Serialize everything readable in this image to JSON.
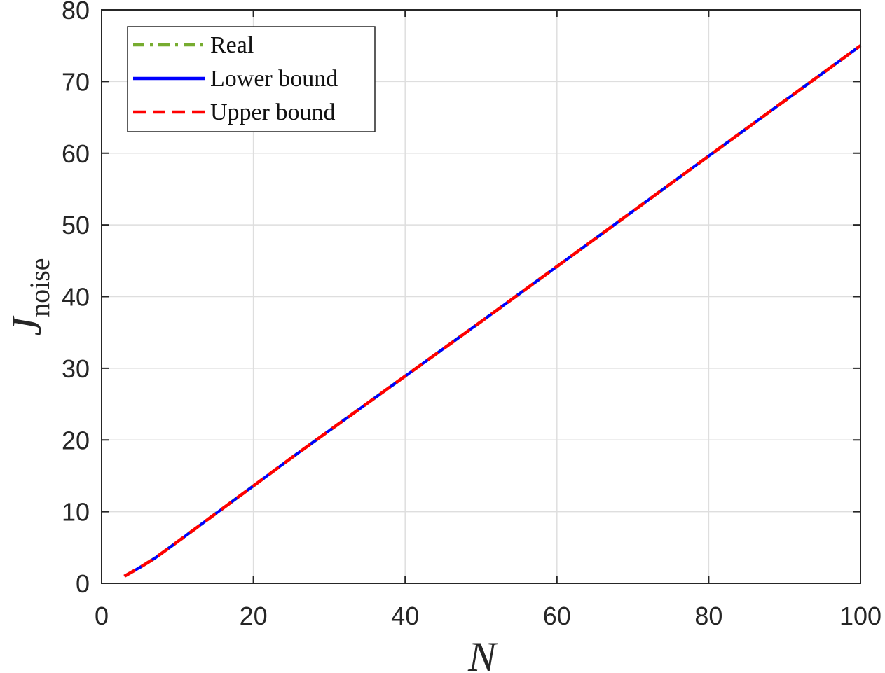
{
  "colors": {
    "real": "#77ac30",
    "lower": "#0000ff",
    "upper": "#ff0000",
    "grid": "#dedede",
    "axis": "#262626"
  },
  "chart_data": {
    "type": "line",
    "xlabel": "N",
    "ylabel": {
      "main": "J",
      "subscript": "noise"
    },
    "xlim": [
      0,
      100
    ],
    "ylim": [
      0,
      80
    ],
    "xticks": [
      0,
      20,
      40,
      60,
      80,
      100
    ],
    "yticks": [
      0,
      10,
      20,
      30,
      40,
      50,
      60,
      70,
      80
    ],
    "grid": true,
    "legend_position": "top-left",
    "x": [
      3,
      5,
      7,
      10,
      15,
      20,
      25,
      30,
      40,
      50,
      60,
      70,
      80,
      90,
      100
    ],
    "series": [
      {
        "name": "Real",
        "style": "dash-dot",
        "color": "#77ac30",
        "values": [
          1.0,
          2.2,
          3.5,
          5.8,
          9.7,
          13.6,
          17.5,
          21.3,
          28.9,
          36.5,
          44.2,
          51.9,
          59.6,
          67.3,
          75.0
        ]
      },
      {
        "name": "Lower bound",
        "style": "solid",
        "color": "#0000ff",
        "values": [
          1.0,
          2.2,
          3.5,
          5.8,
          9.7,
          13.6,
          17.5,
          21.3,
          28.9,
          36.5,
          44.2,
          51.9,
          59.6,
          67.3,
          75.0
        ]
      },
      {
        "name": "Upper bound",
        "style": "dashed",
        "color": "#ff0000",
        "values": [
          1.0,
          2.2,
          3.5,
          5.8,
          9.7,
          13.6,
          17.5,
          21.3,
          28.9,
          36.5,
          44.2,
          51.9,
          59.6,
          67.3,
          75.0
        ]
      }
    ]
  }
}
